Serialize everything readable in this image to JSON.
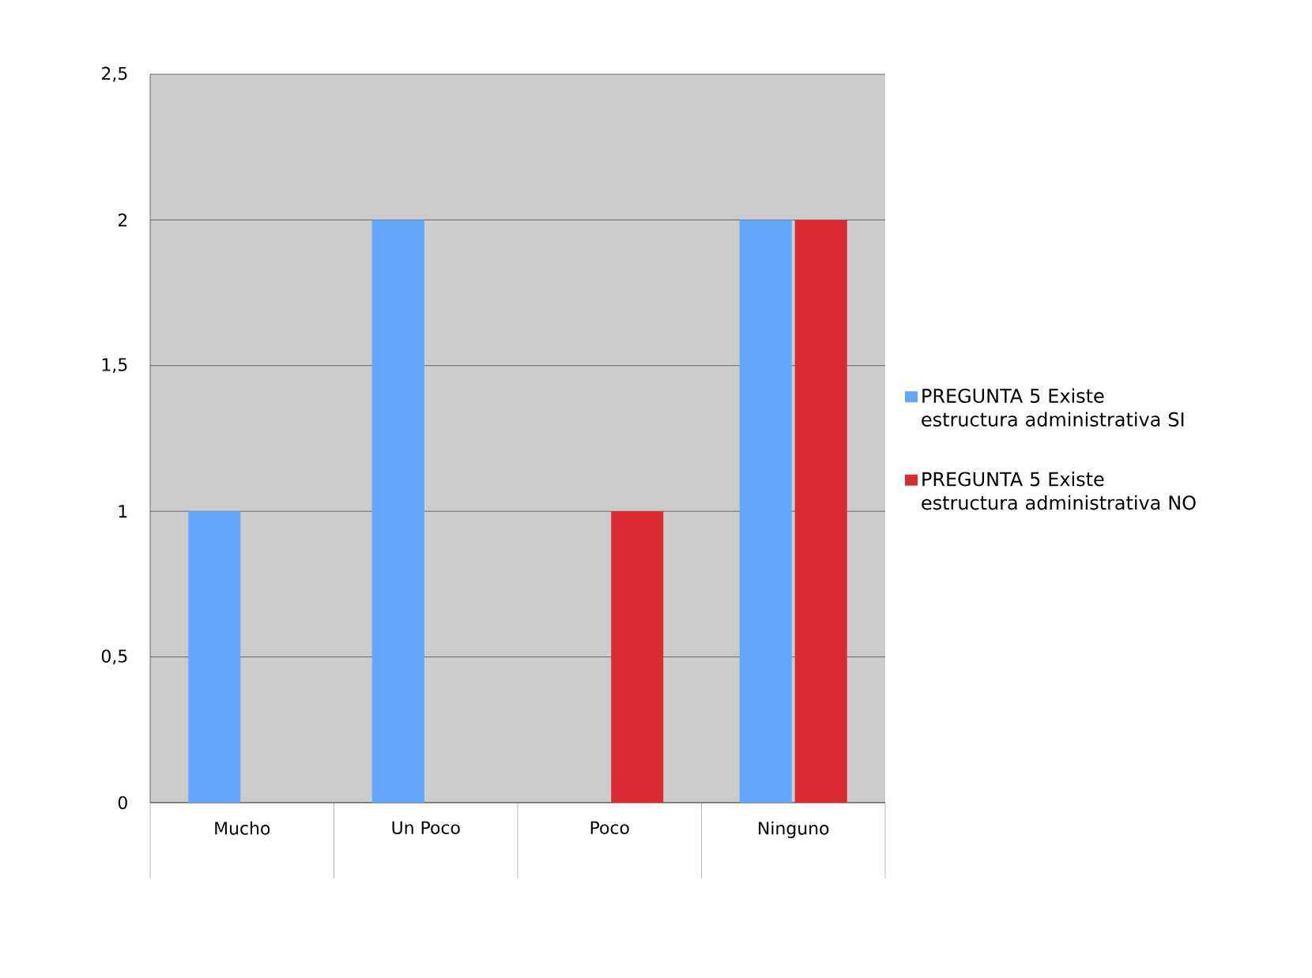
{
  "chart_data": {
    "type": "bar",
    "categories": [
      "Mucho",
      "Un Poco",
      "Poco",
      "Ninguno"
    ],
    "series": [
      {
        "name": "PREGUNTA 5 Existe estructura administrativa SI",
        "color": "#63a6fe",
        "values": [
          1,
          2,
          0,
          2
        ]
      },
      {
        "name": "PREGUNTA 5 Existe estructura administrativa NO",
        "color": "#dc2a33",
        "values": [
          0,
          0,
          1,
          2
        ]
      }
    ],
    "ylim": [
      0,
      2.5
    ],
    "yticks": [
      0,
      {
        "value": 0.5,
        "label": "0,5"
      },
      1,
      {
        "value": 1.5,
        "label": "1,5"
      },
      2,
      {
        "value": 2.5,
        "label": "2,5"
      }
    ],
    "grid": "y",
    "legend": "right"
  }
}
